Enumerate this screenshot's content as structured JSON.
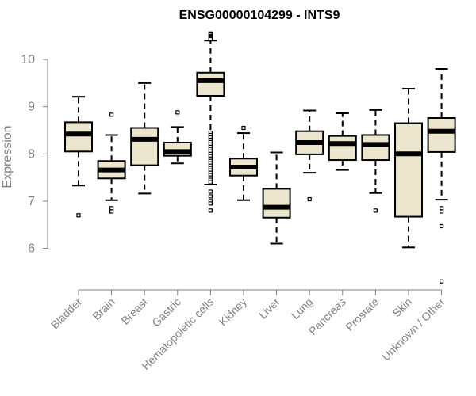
{
  "chart_data": {
    "type": "boxplot",
    "title": "ENSG00000104299 - INTS9",
    "ylabel": "Expression",
    "xlabel": "",
    "ylim": [
      5.2,
      10.6
    ],
    "yticks": [
      6,
      7,
      8,
      9,
      10
    ],
    "box_color": "#ede6cf",
    "categories": [
      "Bladder",
      "Brain",
      "Breast",
      "Gastric",
      "Hematopoietic cells",
      "Kidney",
      "Liver",
      "Lung",
      "Pancreas",
      "Prostate",
      "Skin",
      "Unknown / Other"
    ],
    "boxes": [
      {
        "category": "Bladder",
        "whisker_low": 7.33,
        "q1": 8.05,
        "median": 8.42,
        "q3": 8.67,
        "whisker_high": 9.21,
        "outliers": [
          6.7
        ]
      },
      {
        "category": "Brain",
        "whisker_low": 7.02,
        "q1": 7.48,
        "median": 7.66,
        "q3": 7.85,
        "whisker_high": 8.4,
        "outliers": [
          8.83,
          6.85,
          6.78
        ]
      },
      {
        "category": "Breast",
        "whisker_low": 7.16,
        "q1": 7.76,
        "median": 8.31,
        "q3": 8.55,
        "whisker_high": 9.5,
        "outliers": []
      },
      {
        "category": "Gastric",
        "whisker_low": 7.8,
        "q1": 7.96,
        "median": 8.05,
        "q3": 8.24,
        "whisker_high": 8.57,
        "outliers": [
          8.88
        ]
      },
      {
        "category": "Hematopoietic cells",
        "whisker_low": 7.35,
        "q1": 9.23,
        "median": 9.55,
        "q3": 9.72,
        "whisker_high": 10.4,
        "outliers": [
          10.55,
          10.53,
          10.5,
          10.48,
          10.45,
          10.43,
          8.45,
          8.4,
          8.35,
          8.3,
          8.25,
          8.2,
          8.15,
          8.1,
          8.05,
          8.0,
          7.95,
          7.9,
          7.85,
          7.8,
          7.75,
          7.7,
          7.65,
          7.6,
          7.55,
          7.5,
          7.45,
          7.4,
          7.2,
          7.1,
          7.0,
          6.95,
          6.8
        ]
      },
      {
        "category": "Kidney",
        "whisker_low": 7.02,
        "q1": 7.54,
        "median": 7.72,
        "q3": 7.9,
        "whisker_high": 8.44,
        "outliers": [
          8.55
        ]
      },
      {
        "category": "Liver",
        "whisker_low": 6.1,
        "q1": 6.65,
        "median": 6.87,
        "q3": 7.26,
        "whisker_high": 8.03,
        "outliers": []
      },
      {
        "category": "Lung",
        "whisker_low": 7.6,
        "q1": 7.99,
        "median": 8.24,
        "q3": 8.48,
        "whisker_high": 8.92,
        "outliers": [
          7.04
        ]
      },
      {
        "category": "Pancreas",
        "whisker_low": 7.66,
        "q1": 7.87,
        "median": 8.22,
        "q3": 8.38,
        "whisker_high": 8.86,
        "outliers": []
      },
      {
        "category": "Prostate",
        "whisker_low": 7.17,
        "q1": 7.87,
        "median": 8.2,
        "q3": 8.4,
        "whisker_high": 8.93,
        "outliers": [
          6.8
        ]
      },
      {
        "category": "Skin",
        "whisker_low": 6.02,
        "q1": 6.67,
        "median": 8.0,
        "q3": 8.65,
        "whisker_high": 9.38,
        "outliers": []
      },
      {
        "category": "Unknown / Other",
        "whisker_low": 7.03,
        "q1": 8.04,
        "median": 8.48,
        "q3": 8.76,
        "whisker_high": 9.8,
        "outliers": [
          6.85,
          6.78,
          6.47,
          5.3
        ]
      }
    ]
  }
}
